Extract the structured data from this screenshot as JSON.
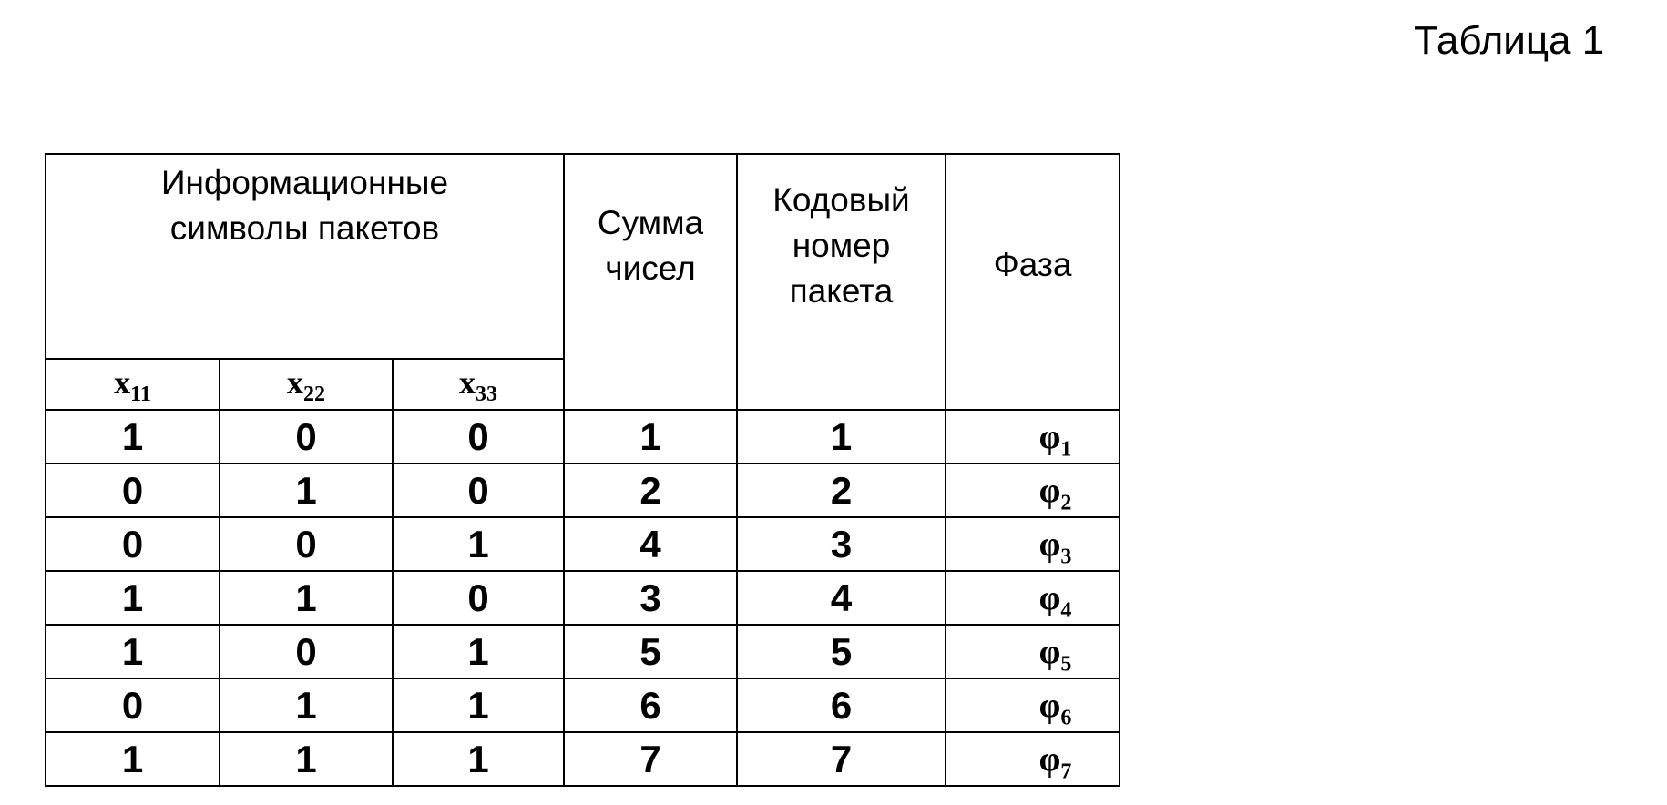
{
  "title": "Таблица 1",
  "table": {
    "group_header": "Информационные символы пакетов",
    "headers": {
      "sum": "Сумма чисел",
      "code": "Кодовый номер пакета",
      "phase": "Фаза"
    },
    "sub_headers": [
      {
        "base": "x",
        "sub": "11"
      },
      {
        "base": "x",
        "sub": "22"
      },
      {
        "base": "x",
        "sub": "33"
      }
    ],
    "rows": [
      {
        "x11": "1",
        "x22": "0",
        "x33": "0",
        "sum": "1",
        "code": "1",
        "phase": "φ",
        "phase_sub": "1"
      },
      {
        "x11": "0",
        "x22": "1",
        "x33": "0",
        "sum": "2",
        "code": "2",
        "phase": "φ",
        "phase_sub": "2"
      },
      {
        "x11": "0",
        "x22": "0",
        "x33": "1",
        "sum": "4",
        "code": "3",
        "phase": "φ",
        "phase_sub": "3"
      },
      {
        "x11": "1",
        "x22": "1",
        "x33": "0",
        "sum": "3",
        "code": "4",
        "phase": "φ",
        "phase_sub": "4"
      },
      {
        "x11": "1",
        "x22": "0",
        "x33": "1",
        "sum": "5",
        "code": "5",
        "phase": "φ",
        "phase_sub": "5"
      },
      {
        "x11": "0",
        "x22": "1",
        "x33": "1",
        "sum": "6",
        "code": "6",
        "phase": "φ",
        "phase_sub": "6"
      },
      {
        "x11": "1",
        "x22": "1",
        "x33": "1",
        "sum": "7",
        "code": "7",
        "phase": "φ",
        "phase_sub": "7"
      }
    ]
  }
}
